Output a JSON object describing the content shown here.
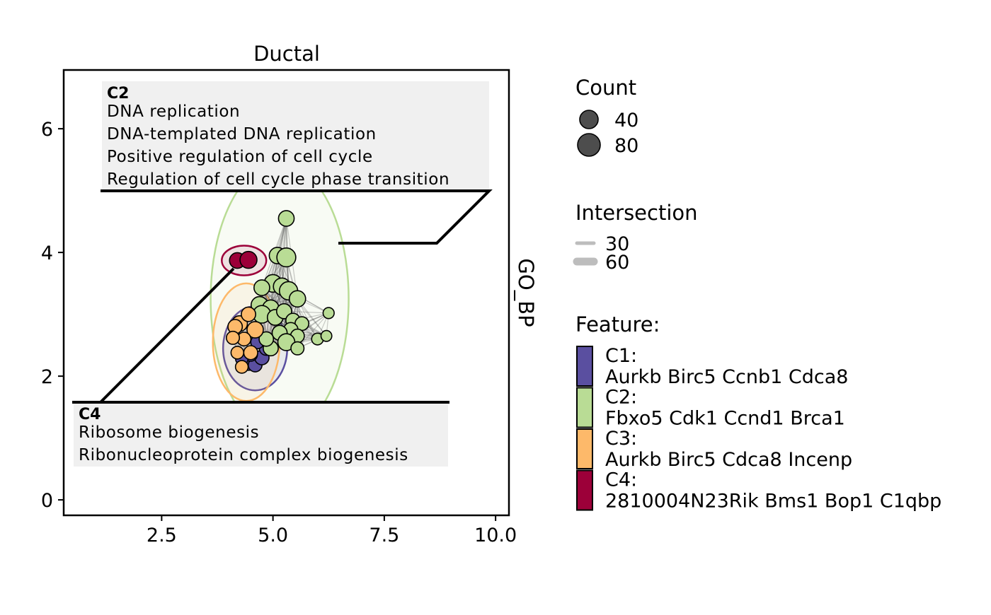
{
  "chart_data": {
    "type": "scatter",
    "title": "Ductal",
    "xlabel": "",
    "ylabel": "",
    "strip_label": "GO_BP",
    "xlim": [
      0.3,
      10.3
    ],
    "ylim": [
      -0.25,
      6.95
    ],
    "x_ticks": [
      2.5,
      5.0,
      7.5,
      10.0
    ],
    "x_tick_labels": [
      "2.5",
      "5.0",
      "7.5",
      "10.0"
    ],
    "y_ticks": [
      0,
      2,
      4,
      6
    ],
    "y_tick_labels": [
      "0",
      "2",
      "4",
      "6"
    ],
    "grid": false,
    "legend_position": "right",
    "clusters": [
      {
        "id": "C1",
        "color": "#5a4fa0",
        "genes": "Aurkb Birc5 Ccnb1 Cdca8",
        "ellipse": {
          "cx": 4.6,
          "cy": 2.45,
          "rx": 0.72,
          "ry": 0.68
        },
        "points": [
          {
            "x": 4.45,
            "y": 2.2,
            "size": 35
          },
          {
            "x": 4.6,
            "y": 2.18,
            "size": 40
          },
          {
            "x": 4.75,
            "y": 2.3,
            "size": 45
          },
          {
            "x": 4.5,
            "y": 2.35,
            "size": 38
          },
          {
            "x": 4.3,
            "y": 2.28,
            "size": 30
          },
          {
            "x": 4.85,
            "y": 2.45,
            "size": 42
          },
          {
            "x": 4.65,
            "y": 2.55,
            "size": 36
          }
        ]
      },
      {
        "id": "C2",
        "color": "#b9dc95",
        "genes": "Fbxo5 Cdk1 Ccnd1 Brca1",
        "ellipse": {
          "cx": 5.15,
          "cy": 3.25,
          "rx": 1.55,
          "ry": 2.2
        },
        "points": [
          {
            "x": 5.3,
            "y": 4.55,
            "size": 55
          },
          {
            "x": 5.1,
            "y": 3.95,
            "size": 60
          },
          {
            "x": 5.3,
            "y": 3.92,
            "size": 80
          },
          {
            "x": 5.0,
            "y": 3.5,
            "size": 70
          },
          {
            "x": 5.2,
            "y": 3.45,
            "size": 65
          },
          {
            "x": 5.35,
            "y": 3.38,
            "size": 75
          },
          {
            "x": 4.75,
            "y": 3.43,
            "size": 55
          },
          {
            "x": 5.55,
            "y": 3.25,
            "size": 60
          },
          {
            "x": 4.7,
            "y": 3.15,
            "size": 65
          },
          {
            "x": 4.95,
            "y": 3.1,
            "size": 60
          },
          {
            "x": 4.75,
            "y": 3.0,
            "size": 70
          },
          {
            "x": 5.05,
            "y": 2.95,
            "size": 55
          },
          {
            "x": 5.25,
            "y": 3.05,
            "size": 50
          },
          {
            "x": 5.45,
            "y": 2.9,
            "size": 45
          },
          {
            "x": 5.65,
            "y": 2.85,
            "size": 40
          },
          {
            "x": 5.4,
            "y": 2.75,
            "size": 45
          },
          {
            "x": 5.15,
            "y": 2.7,
            "size": 50
          },
          {
            "x": 5.55,
            "y": 2.65,
            "size": 40
          },
          {
            "x": 5.3,
            "y": 2.55,
            "size": 65
          },
          {
            "x": 4.95,
            "y": 2.45,
            "size": 50
          },
          {
            "x": 5.55,
            "y": 2.45,
            "size": 35
          },
          {
            "x": 6.25,
            "y": 3.02,
            "size": 20
          },
          {
            "x": 6.0,
            "y": 2.6,
            "size": 25
          },
          {
            "x": 6.2,
            "y": 2.65,
            "size": 18
          },
          {
            "x": 4.85,
            "y": 2.6,
            "size": 45
          }
        ]
      },
      {
        "id": "C3",
        "color": "#fdb96a",
        "genes": "Aurkb Birc5 Cdca8 Incenp",
        "ellipse": {
          "cx": 4.4,
          "cy": 2.55,
          "rx": 0.75,
          "ry": 0.95
        },
        "points": [
          {
            "x": 4.25,
            "y": 2.85,
            "size": 55
          },
          {
            "x": 4.45,
            "y": 3.0,
            "size": 45
          },
          {
            "x": 4.6,
            "y": 2.75,
            "size": 60
          },
          {
            "x": 4.35,
            "y": 2.6,
            "size": 40
          },
          {
            "x": 4.15,
            "y": 2.8,
            "size": 45
          },
          {
            "x": 4.1,
            "y": 2.62,
            "size": 35
          },
          {
            "x": 4.2,
            "y": 2.38,
            "size": 32
          },
          {
            "x": 4.5,
            "y": 2.38,
            "size": 42
          },
          {
            "x": 4.3,
            "y": 2.15,
            "size": 32
          }
        ]
      },
      {
        "id": "C4",
        "color": "#9c0039",
        "genes": "2810004N23Rik Bms1 Bop1 C1qbp",
        "ellipse": {
          "cx": 4.35,
          "cy": 3.87,
          "rx": 0.5,
          "ry": 0.24
        },
        "points": [
          {
            "x": 4.2,
            "y": 3.87,
            "size": 55
          },
          {
            "x": 4.45,
            "y": 3.88,
            "size": 65
          }
        ]
      }
    ],
    "annotations": [
      {
        "cluster": "C2",
        "header": "C2",
        "terms": [
          "DNA replication",
          "DNA-templated DNA replication",
          "Positive regulation of cell cycle",
          "Regulation of cell cycle phase transition"
        ]
      },
      {
        "cluster": "C4",
        "header": "C4",
        "terms": [
          "Ribosome biogenesis",
          "Ribonucleoprotein complex biogenesis"
        ]
      }
    ],
    "legend": {
      "count_title": "Count",
      "count_labels": [
        "40",
        "80"
      ],
      "count_values": [
        40,
        80
      ],
      "intersection_title": "Intersection",
      "intersection_labels": [
        "30",
        "60"
      ],
      "feature_title": "Feature:",
      "feature_items": [
        {
          "label": "C1:",
          "genes": "Aurkb Birc5 Ccnb1 Cdca8",
          "color": "#5a4fa0"
        },
        {
          "label": "C2:",
          "genes": "Fbxo5 Cdk1 Ccnd1 Brca1",
          "color": "#b9dc95"
        },
        {
          "label": "C3:",
          "genes": "Aurkb Birc5 Cdca8 Incenp",
          "color": "#fdb96a"
        },
        {
          "label": "C4:",
          "genes": "2810004N23Rik Bms1 Bop1 C1qbp",
          "color": "#9c0039"
        }
      ]
    },
    "colors": {
      "point_fill": "#4d4d4d",
      "edge": "#4d4d4d",
      "label_bg": "#f0f0f0",
      "intersection_line": "#bdbdbd"
    }
  }
}
